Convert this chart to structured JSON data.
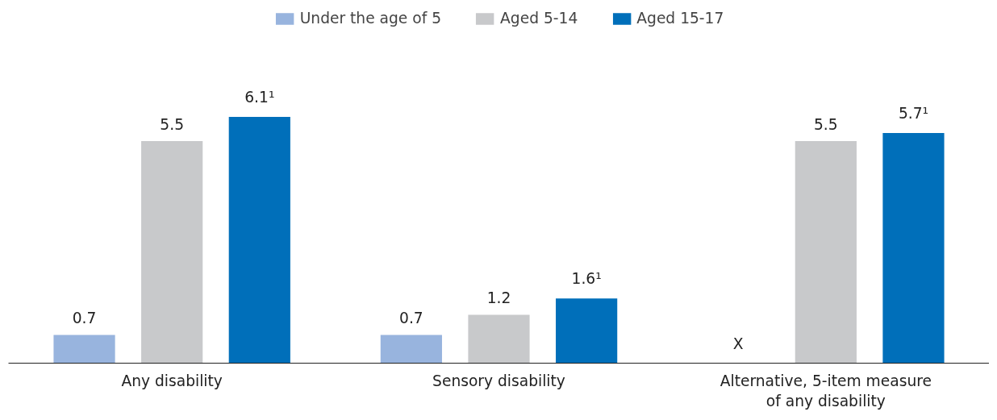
{
  "chart_data": {
    "type": "bar",
    "categories": [
      "Any disability",
      "Sensory disability",
      "Alternative, 5-item measure of any disability"
    ],
    "series": [
      {
        "name": "Under the age of 5",
        "color": "#98b4de",
        "values": [
          0.7,
          0.7,
          null
        ],
        "value_labels": [
          "0.7",
          "0.7",
          "X"
        ]
      },
      {
        "name": "Aged 5-14",
        "color": "#c8c9cb",
        "values": [
          5.5,
          1.2,
          5.5
        ],
        "value_labels": [
          "5.5",
          "1.2",
          "5.5"
        ]
      },
      {
        "name": "Aged 15-17",
        "color": "#006fba",
        "values": [
          6.1,
          1.6,
          5.7
        ],
        "value_labels": [
          "6.1¹",
          "1.6¹",
          "5.7¹"
        ]
      }
    ],
    "legend": "top",
    "grid": false
  }
}
